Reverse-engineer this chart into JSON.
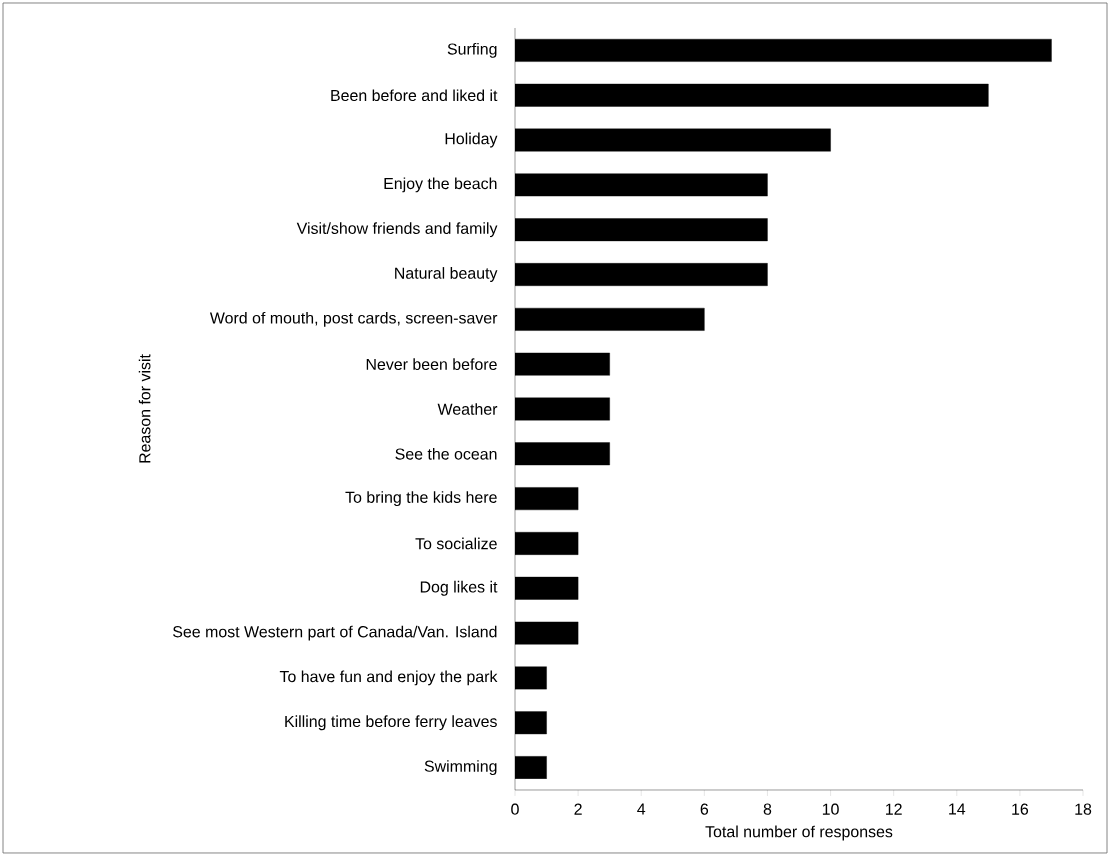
{
  "chart_data": {
    "type": "bar",
    "orientation": "horizontal",
    "xlabel": "Total number of responses",
    "ylabel": "Reason for visit",
    "categories": [
      "Surfing",
      "Been before and liked it",
      "Holiday",
      "Enjoy the beach",
      "Visit/show friends and family",
      "Natural beauty",
      "Word of mouth, post cards, screen-saver",
      "Never been before",
      "Weather",
      "See the ocean",
      "To bring the kids here",
      "To socialize",
      "Dog likes it",
      "See most Western part of Canada/Van. Island",
      "To have fun and enjoy the park",
      "Killing time before ferry leaves",
      "Swimming"
    ],
    "values": [
      17,
      15,
      10,
      8,
      8,
      8,
      6,
      3,
      3,
      3,
      2,
      2,
      2,
      2,
      1,
      1,
      1
    ],
    "color": "#000000",
    "xlim": [
      0,
      18
    ],
    "xticks": [
      0,
      2,
      4,
      6,
      8,
      10,
      12,
      14,
      16,
      18
    ]
  }
}
